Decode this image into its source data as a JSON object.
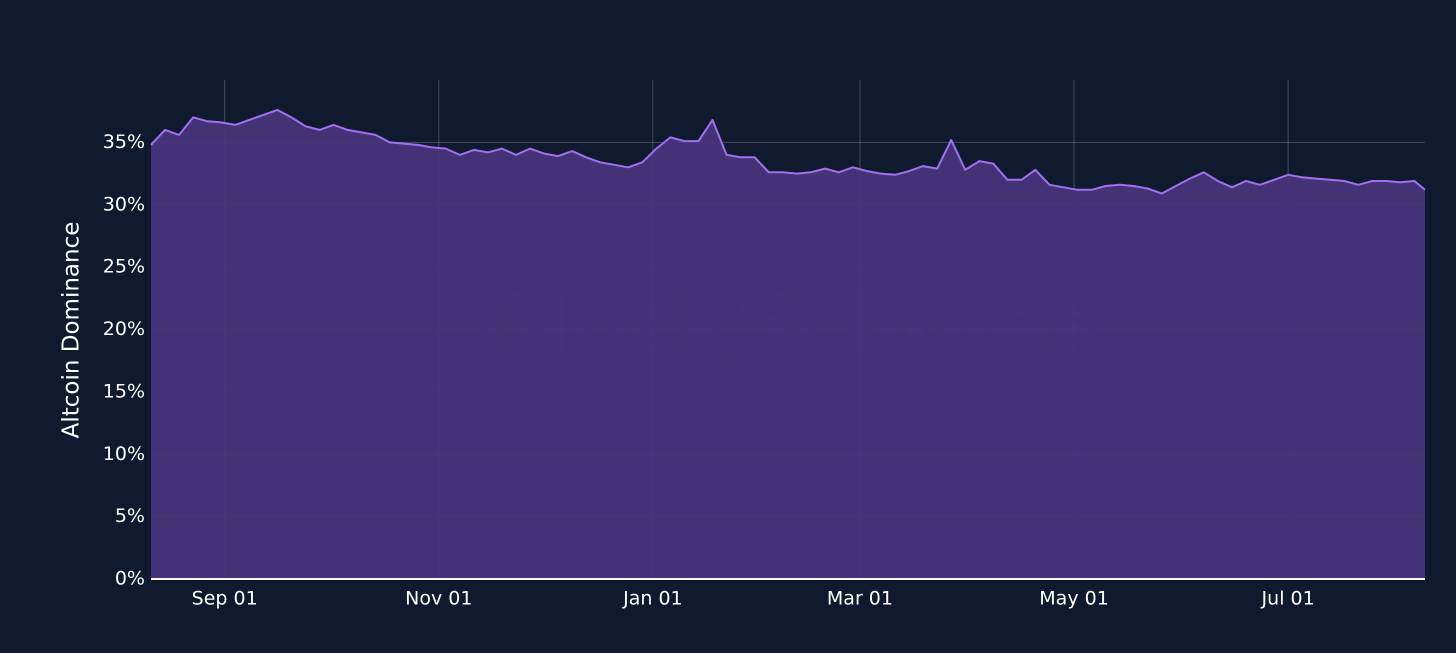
{
  "chart_data": {
    "type": "area",
    "watermark": "BlockScholes",
    "ylabel": "Altcoin Dominance",
    "x": [
      "Aug 11",
      "Aug 15",
      "Aug 19",
      "Aug 23",
      "Aug 27",
      "Aug 31",
      "Sep 04",
      "Sep 08",
      "Sep 12",
      "Sep 16",
      "Sep 20",
      "Sep 24",
      "Sep 28",
      "Oct 02",
      "Oct 06",
      "Oct 10",
      "Oct 14",
      "Oct 18",
      "Oct 22",
      "Oct 26",
      "Oct 30",
      "Nov 03",
      "Nov 07",
      "Nov 11",
      "Nov 15",
      "Nov 19",
      "Nov 23",
      "Nov 27",
      "Dec 01",
      "Dec 05",
      "Dec 09",
      "Dec 13",
      "Dec 17",
      "Dec 21",
      "Dec 25",
      "Dec 29",
      "Jan 02",
      "Jan 06",
      "Jan 10",
      "Jan 14",
      "Jan 18",
      "Jan 22",
      "Jan 26",
      "Jan 30",
      "Feb 03",
      "Feb 07",
      "Feb 11",
      "Feb 15",
      "Feb 19",
      "Feb 23",
      "Feb 27",
      "Mar 03",
      "Mar 07",
      "Mar 11",
      "Mar 15",
      "Mar 19",
      "Mar 23",
      "Mar 27",
      "Mar 31",
      "Apr 04",
      "Apr 08",
      "Apr 12",
      "Apr 16",
      "Apr 20",
      "Apr 24",
      "Apr 28",
      "May 02",
      "May 06",
      "May 10",
      "May 14",
      "May 18",
      "May 22",
      "May 26",
      "May 30",
      "Jun 03",
      "Jun 07",
      "Jun 11",
      "Jun 15",
      "Jun 19",
      "Jun 23",
      "Jun 27",
      "Jul 01",
      "Jul 05",
      "Jul 09",
      "Jul 13",
      "Jul 17",
      "Jul 21",
      "Jul 25",
      "Jul 29",
      "Aug 02",
      "Aug 06",
      "Aug 09"
    ],
    "values": [
      34.8,
      36.0,
      35.6,
      37.0,
      36.7,
      36.6,
      36.4,
      36.8,
      37.2,
      37.6,
      37.0,
      36.3,
      36.0,
      36.4,
      36.0,
      35.8,
      35.6,
      35.0,
      34.9,
      34.8,
      34.6,
      34.5,
      34.0,
      34.4,
      34.2,
      34.5,
      34.0,
      34.5,
      34.1,
      33.9,
      34.3,
      33.8,
      33.4,
      33.2,
      33.0,
      33.4,
      34.5,
      35.4,
      35.1,
      35.1,
      36.8,
      34.0,
      33.8,
      33.8,
      32.6,
      32.6,
      32.5,
      32.6,
      32.9,
      32.6,
      33.0,
      32.7,
      32.5,
      32.4,
      32.7,
      33.1,
      32.9,
      35.2,
      32.8,
      33.5,
      33.3,
      32.0,
      32.0,
      32.8,
      31.6,
      31.4,
      31.2,
      31.2,
      31.5,
      31.6,
      31.5,
      31.3,
      30.9,
      31.5,
      32.1,
      32.6,
      31.9,
      31.4,
      31.9,
      31.6,
      32.0,
      32.4,
      32.2,
      32.1,
      32.0,
      31.9,
      31.6,
      31.9,
      31.9,
      31.8,
      31.9,
      31.2
    ],
    "line_color": "#a070f0",
    "fill_color": "#47357a",
    "xlim": [
      "Aug 11",
      "Aug 09"
    ],
    "xticks": [
      "Sep 01",
      "Nov 01",
      "Jan 01",
      "Mar 01",
      "May 01",
      "Jul 01"
    ],
    "ylim": [
      0,
      40
    ],
    "yticks": [
      {
        "value": 0,
        "label": "0%"
      },
      {
        "value": 5,
        "label": "5%"
      },
      {
        "value": 10,
        "label": "10%"
      },
      {
        "value": 15,
        "label": "15%"
      },
      {
        "value": 20,
        "label": "20%"
      },
      {
        "value": 25,
        "label": "25%"
      },
      {
        "value": 30,
        "label": "30%"
      },
      {
        "value": 35,
        "label": "35%"
      }
    ],
    "grid": true
  }
}
